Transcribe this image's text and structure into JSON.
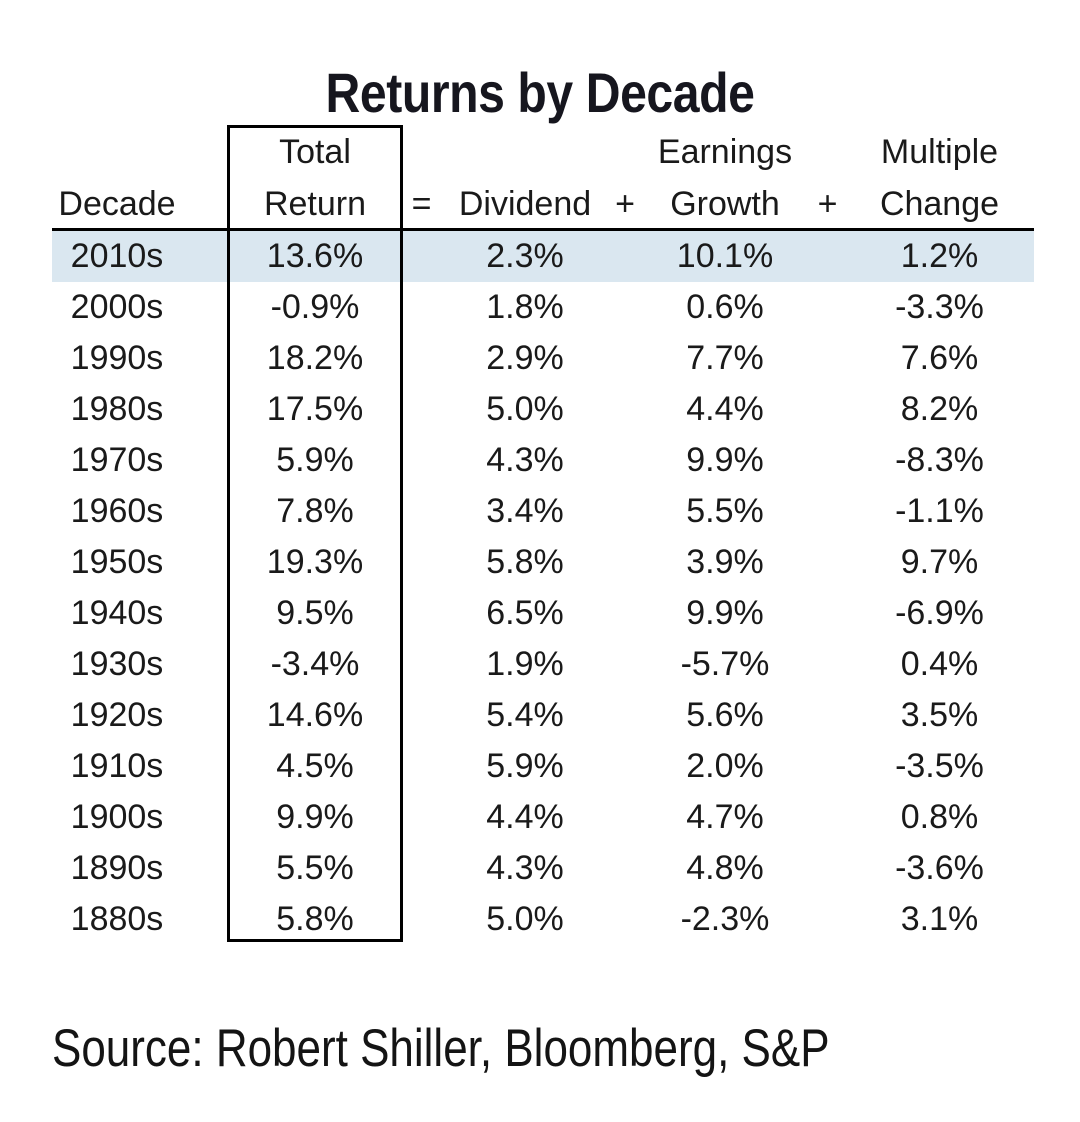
{
  "title": "Returns by Decade",
  "source": "Source: Robert Shiller, Bloomberg, S&P",
  "colors": {
    "highlight_row": "#dae7f0",
    "border": "#000000",
    "text": "#1a1a1a"
  },
  "table": {
    "headers": {
      "decade": "Decade",
      "total_line1": "Total",
      "total_line2": "Return",
      "equals": "=",
      "dividend": "Dividend",
      "plus1": "+",
      "earnings_line1": "Earnings",
      "earnings_line2": "Growth",
      "plus2": "+",
      "multiple_line1": "Multiple",
      "multiple_line2": "Change"
    },
    "rows": [
      {
        "decade": "2010s",
        "total_return": "13.6%",
        "dividend": "2.3%",
        "earnings_growth": "10.1%",
        "multiple_change": "1.2%",
        "highlighted": true
      },
      {
        "decade": "2000s",
        "total_return": "-0.9%",
        "dividend": "1.8%",
        "earnings_growth": "0.6%",
        "multiple_change": "-3.3%",
        "highlighted": false
      },
      {
        "decade": "1990s",
        "total_return": "18.2%",
        "dividend": "2.9%",
        "earnings_growth": "7.7%",
        "multiple_change": "7.6%",
        "highlighted": false
      },
      {
        "decade": "1980s",
        "total_return": "17.5%",
        "dividend": "5.0%",
        "earnings_growth": "4.4%",
        "multiple_change": "8.2%",
        "highlighted": false
      },
      {
        "decade": "1970s",
        "total_return": "5.9%",
        "dividend": "4.3%",
        "earnings_growth": "9.9%",
        "multiple_change": "-8.3%",
        "highlighted": false
      },
      {
        "decade": "1960s",
        "total_return": "7.8%",
        "dividend": "3.4%",
        "earnings_growth": "5.5%",
        "multiple_change": "-1.1%",
        "highlighted": false
      },
      {
        "decade": "1950s",
        "total_return": "19.3%",
        "dividend": "5.8%",
        "earnings_growth": "3.9%",
        "multiple_change": "9.7%",
        "highlighted": false
      },
      {
        "decade": "1940s",
        "total_return": "9.5%",
        "dividend": "6.5%",
        "earnings_growth": "9.9%",
        "multiple_change": "-6.9%",
        "highlighted": false
      },
      {
        "decade": "1930s",
        "total_return": "-3.4%",
        "dividend": "1.9%",
        "earnings_growth": "-5.7%",
        "multiple_change": "0.4%",
        "highlighted": false
      },
      {
        "decade": "1920s",
        "total_return": "14.6%",
        "dividend": "5.4%",
        "earnings_growth": "5.6%",
        "multiple_change": "3.5%",
        "highlighted": false
      },
      {
        "decade": "1910s",
        "total_return": "4.5%",
        "dividend": "5.9%",
        "earnings_growth": "2.0%",
        "multiple_change": "-3.5%",
        "highlighted": false
      },
      {
        "decade": "1900s",
        "total_return": "9.9%",
        "dividend": "4.4%",
        "earnings_growth": "4.7%",
        "multiple_change": "0.8%",
        "highlighted": false
      },
      {
        "decade": "1890s",
        "total_return": "5.5%",
        "dividend": "4.3%",
        "earnings_growth": "4.8%",
        "multiple_change": "-3.6%",
        "highlighted": false
      },
      {
        "decade": "1880s",
        "total_return": "5.8%",
        "dividend": "5.0%",
        "earnings_growth": "-2.3%",
        "multiple_change": "3.1%",
        "highlighted": false
      }
    ]
  },
  "chart_data": {
    "type": "table",
    "title": "Returns by Decade",
    "relationship": "Total Return = Dividend + Earnings Growth + Multiple Change",
    "columns": [
      "Decade",
      "Total Return",
      "Dividend",
      "Earnings Growth",
      "Multiple Change"
    ],
    "categories": [
      "2010s",
      "2000s",
      "1990s",
      "1980s",
      "1970s",
      "1960s",
      "1950s",
      "1940s",
      "1930s",
      "1920s",
      "1910s",
      "1900s",
      "1890s",
      "1880s"
    ],
    "series": [
      {
        "name": "Total Return (%)",
        "values": [
          13.6,
          -0.9,
          18.2,
          17.5,
          5.9,
          7.8,
          19.3,
          9.5,
          -3.4,
          14.6,
          4.5,
          9.9,
          5.5,
          5.8
        ]
      },
      {
        "name": "Dividend (%)",
        "values": [
          2.3,
          1.8,
          2.9,
          5.0,
          4.3,
          3.4,
          5.8,
          6.5,
          1.9,
          5.4,
          5.9,
          4.4,
          4.3,
          5.0
        ]
      },
      {
        "name": "Earnings Growth (%)",
        "values": [
          10.1,
          0.6,
          7.7,
          4.4,
          9.9,
          5.5,
          3.9,
          9.9,
          -5.7,
          5.6,
          2.0,
          4.7,
          4.8,
          -2.3
        ]
      },
      {
        "name": "Multiple Change (%)",
        "values": [
          1.2,
          -3.3,
          7.6,
          8.2,
          -8.3,
          -1.1,
          9.7,
          -6.9,
          0.4,
          3.5,
          -3.5,
          0.8,
          -3.6,
          3.1
        ]
      }
    ],
    "highlighted_row": "2010s",
    "source": "Source: Robert Shiller, Bloomberg, S&P"
  }
}
